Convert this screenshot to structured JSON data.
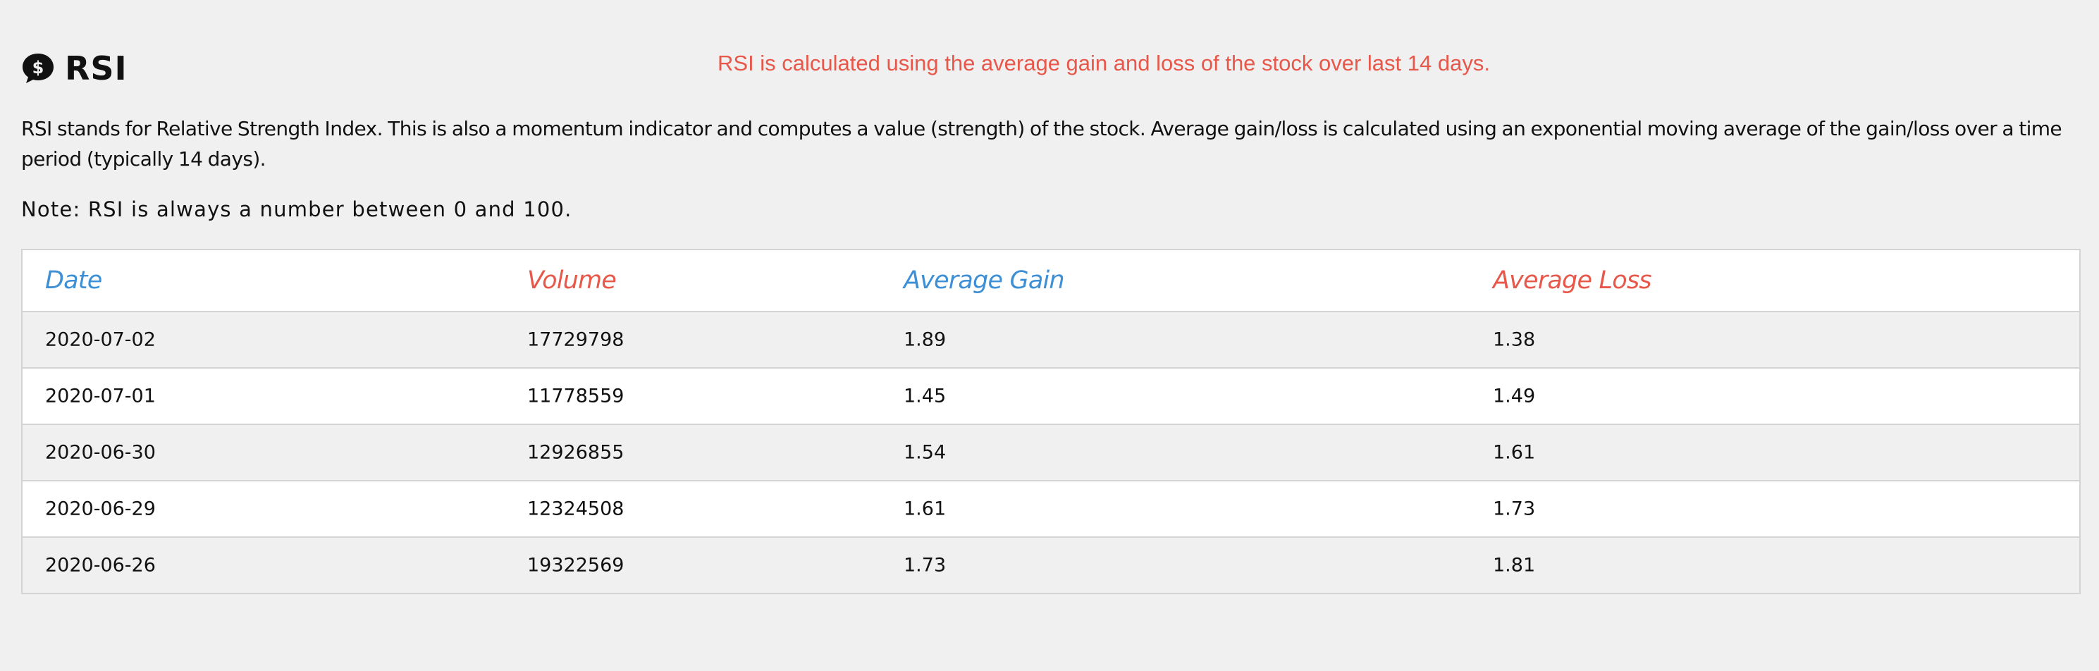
{
  "header": {
    "title": "RSI",
    "title_icon": "dollar-speech-bubble-icon",
    "callout": "RSI is calculated using the average gain and loss of the stock over last 14 days."
  },
  "description": "RSI stands for Relative Strength Index. This is also a momentum indicator and computes a value (strength) of the stock. Average gain/loss is calculated using an exponential moving average of the gain/loss over a time period (typically 14 days).",
  "note": "Note: RSI is always a number between 0 and 100.",
  "table": {
    "columns": [
      "Date",
      "Volume",
      "Average Gain",
      "Average Loss"
    ],
    "rows": [
      [
        "2020-07-02",
        "17729798",
        "1.89",
        "1.38"
      ],
      [
        "2020-07-01",
        "11778559",
        "1.45",
        "1.49"
      ],
      [
        "2020-06-30",
        "12926855",
        "1.54",
        "1.61"
      ],
      [
        "2020-06-29",
        "12324508",
        "1.61",
        "1.73"
      ],
      [
        "2020-06-26",
        "19322569",
        "1.73",
        "1.81"
      ]
    ]
  },
  "colors": {
    "accent_blue": "#3d8fd6",
    "accent_red": "#e8584a",
    "background": "#f0f0f0"
  }
}
